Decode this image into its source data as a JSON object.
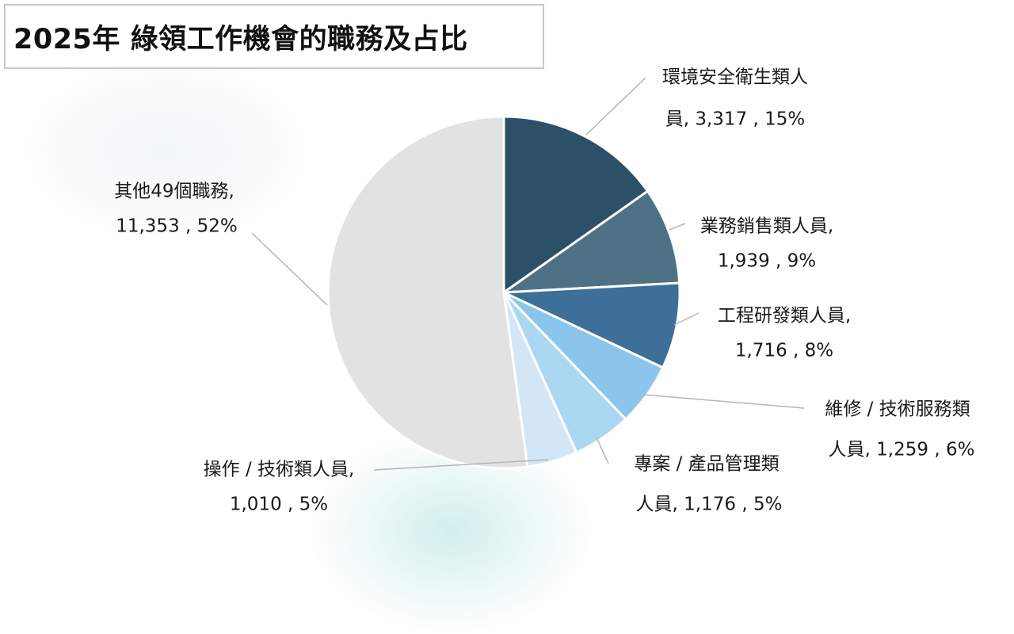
{
  "title": "2025年 綠領工作機會的職務及占比",
  "chart_data": {
    "type": "pie",
    "title": "2025年 綠領工作機會的職務及占比",
    "slices": [
      {
        "label": "環境安全衛生類人員",
        "value": 3317,
        "percent": "15%",
        "color": "#2c5068",
        "label_lines": [
          "環境安全衛生類人",
          "員, 3,317 , 15%"
        ]
      },
      {
        "label": "業務銷售類人員",
        "value": 1939,
        "percent": "9%",
        "color": "#4f7185",
        "label_lines": [
          "業務銷售類人員,",
          "1,939 , 9%"
        ]
      },
      {
        "label": "工程研發類人員",
        "value": 1716,
        "percent": "8%",
        "color": "#3d6f98",
        "label_lines": [
          "工程研發類人員,",
          "1,716 , 8%"
        ]
      },
      {
        "label": "維修 / 技術服務類人員",
        "value": 1259,
        "percent": "6%",
        "color": "#8cc5ec",
        "label_lines": [
          "維修 / 技術服務類",
          "人員, 1,259 , 6%"
        ]
      },
      {
        "label": "專案 / 產品管理類人員",
        "value": 1176,
        "percent": "5%",
        "color": "#acd7f3",
        "label_lines": [
          "專案 / 產品管理類",
          "人員, 1,176 , 5%"
        ]
      },
      {
        "label": "操作 / 技術類人員",
        "value": 1010,
        "percent": "5%",
        "color": "#d2e6f6",
        "label_lines": [
          "操作 / 技術類人員,",
          "1,010 , 5%"
        ]
      },
      {
        "label": "其他49個職務",
        "value": 11353,
        "percent": "52%",
        "color": "#e2e2e2",
        "label_lines": [
          "其他49個職務,",
          "11,353 , 52%"
        ]
      }
    ]
  }
}
